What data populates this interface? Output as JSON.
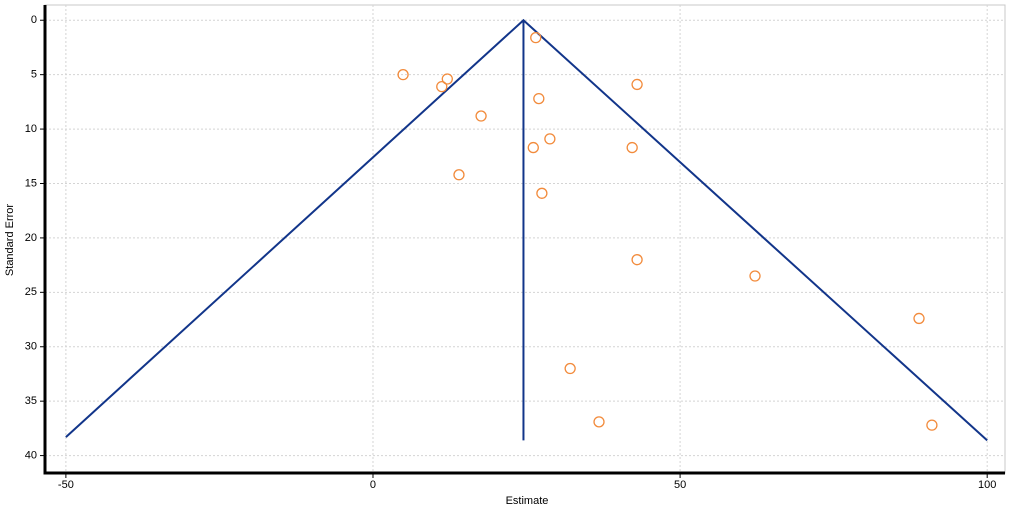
{
  "chart_data": {
    "type": "scatter",
    "xlabel": "Estimate",
    "ylabel": "Standard Error",
    "xlim": [
      -53.4,
      102.9
    ],
    "ylim": [
      -1.4,
      41.6
    ],
    "y_inverted": true,
    "xticks": [
      -50,
      0,
      50,
      100
    ],
    "yticks": [
      0,
      5,
      10,
      15,
      20,
      25,
      30,
      35,
      40
    ],
    "grid": true,
    "series": [
      {
        "style": "marker",
        "color": "#f28b3c",
        "x": [
          26.5,
          4.9,
          12.1,
          11.2,
          43.0,
          27.0,
          17.6,
          28.8,
          26.1,
          42.2,
          14.0,
          27.5,
          43.0,
          62.2,
          88.9,
          32.1,
          36.8,
          91.0
        ],
        "values": [
          1.6,
          5.0,
          5.4,
          6.1,
          5.9,
          7.2,
          8.8,
          10.9,
          11.7,
          11.7,
          14.2,
          15.9,
          22.0,
          23.5,
          27.4,
          32.0,
          36.9,
          37.2
        ]
      },
      {
        "style": "line",
        "color": "#12358a",
        "x": [
          -50,
          24.5,
          100
        ],
        "values": [
          38.3,
          0,
          38.6
        ]
      },
      {
        "style": "line",
        "color": "#12358a",
        "x": [
          24.5,
          24.5
        ],
        "values": [
          0,
          38.6
        ]
      }
    ]
  }
}
